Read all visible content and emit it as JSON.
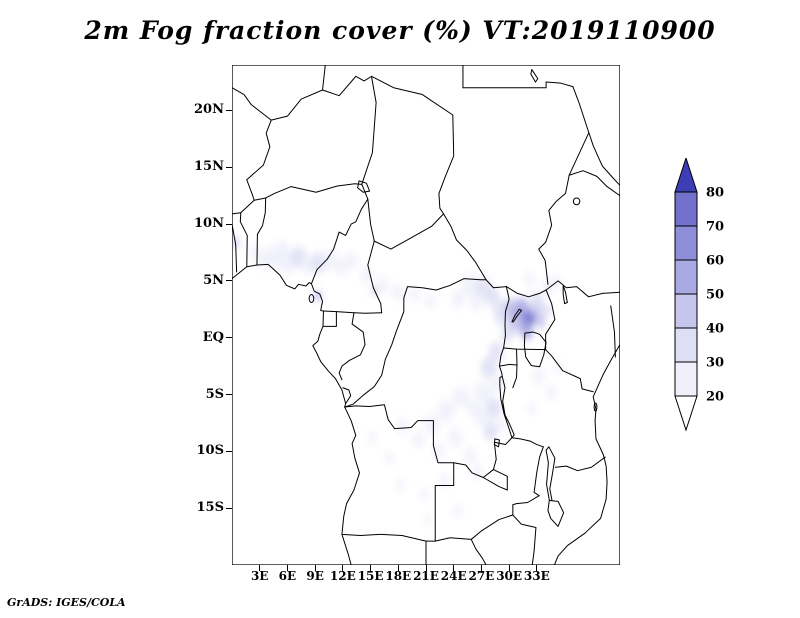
{
  "page": {
    "title": "2m Fog fraction cover (%) VT:2019110900",
    "footer": "GrADS: IGES/COLA"
  },
  "chart_data": {
    "type": "heatmap",
    "title": "2m Fog fraction cover (%) VT:2019110900",
    "variable": "2m Fog fraction cover",
    "units": "%",
    "valid_time": "2019110900",
    "region": "Central Africa",
    "grid": false,
    "legend_position": "right",
    "lon_range": [
      0,
      42
    ],
    "lat_range": [
      -20,
      24
    ],
    "lat_ticks": [
      {
        "value": 20,
        "label": "20N"
      },
      {
        "value": 15,
        "label": "15N"
      },
      {
        "value": 10,
        "label": "10N"
      },
      {
        "value": 5,
        "label": "5N"
      },
      {
        "value": 0,
        "label": "EQ"
      },
      {
        "value": -5,
        "label": "5S"
      },
      {
        "value": -10,
        "label": "10S"
      },
      {
        "value": -15,
        "label": "15S"
      }
    ],
    "lon_ticks": [
      {
        "value": 3,
        "label": "3E"
      },
      {
        "value": 6,
        "label": "6E"
      },
      {
        "value": 9,
        "label": "9E"
      },
      {
        "value": 12,
        "label": "12E"
      },
      {
        "value": 15,
        "label": "15E"
      },
      {
        "value": 18,
        "label": "18E"
      },
      {
        "value": 21,
        "label": "21E"
      },
      {
        "value": 24,
        "label": "24E"
      },
      {
        "value": 27,
        "label": "27E"
      },
      {
        "value": 30,
        "label": "30E"
      },
      {
        "value": 33,
        "label": "33E"
      }
    ],
    "colorbar": {
      "levels": [
        20,
        30,
        40,
        50,
        60,
        70,
        80
      ],
      "labels": [
        "20",
        "30",
        "40",
        "50",
        "60",
        "70",
        "80"
      ],
      "colors": [
        "#ffffff",
        "#f0f0fb",
        "#dedef5",
        "#c6c6ed",
        "#aaaae3",
        "#8f8fd9",
        "#7272cd",
        "#3d3db5"
      ]
    },
    "fog_patches": [
      [
        3.6,
        6.9,
        0.9,
        20
      ],
      [
        4.8,
        7.2,
        1.0,
        25
      ],
      [
        6.0,
        6.7,
        1.1,
        25
      ],
      [
        7.2,
        7.1,
        0.9,
        30
      ],
      [
        8.2,
        6.4,
        0.8,
        25
      ],
      [
        9.4,
        6.6,
        0.9,
        30
      ],
      [
        10.6,
        6.9,
        0.8,
        20
      ],
      [
        11.8,
        6.3,
        0.8,
        25
      ],
      [
        13.0,
        6.8,
        0.7,
        20
      ],
      [
        9.3,
        3.7,
        0.35,
        60
      ],
      [
        0.4,
        8.4,
        0.35,
        50
      ],
      [
        5.5,
        8.0,
        0.6,
        20
      ],
      [
        2.5,
        7.5,
        0.6,
        20
      ],
      [
        14.6,
        5.5,
        0.7,
        20
      ],
      [
        16.3,
        4.6,
        0.7,
        20
      ],
      [
        18.0,
        4.0,
        0.7,
        20
      ],
      [
        15.4,
        4.1,
        0.3,
        50
      ],
      [
        19.8,
        3.8,
        0.6,
        20
      ],
      [
        21.5,
        3.2,
        0.6,
        20
      ],
      [
        24.5,
        3.4,
        0.8,
        20
      ],
      [
        25.8,
        4.6,
        1.0,
        25
      ],
      [
        27.2,
        4.4,
        0.9,
        30
      ],
      [
        26.5,
        3.2,
        0.8,
        25
      ],
      [
        28.2,
        3.6,
        0.8,
        30
      ],
      [
        29.4,
        2.2,
        1.1,
        30
      ],
      [
        30.3,
        2.6,
        0.9,
        40
      ],
      [
        31.0,
        2.0,
        0.9,
        50
      ],
      [
        31.8,
        1.4,
        0.8,
        60
      ],
      [
        32.4,
        1.9,
        0.7,
        70
      ],
      [
        31.4,
        2.8,
        0.7,
        50
      ],
      [
        32.9,
        2.6,
        0.7,
        40
      ],
      [
        30.6,
        1.2,
        0.8,
        40
      ],
      [
        31.9,
        0.5,
        0.7,
        50
      ],
      [
        33.4,
        1.4,
        0.6,
        40
      ],
      [
        33.0,
        3.3,
        0.7,
        30
      ],
      [
        29.8,
        0.3,
        0.7,
        30
      ],
      [
        34.0,
        2.4,
        0.6,
        30
      ],
      [
        34.3,
        4.6,
        0.7,
        25
      ],
      [
        32.2,
        5.2,
        0.6,
        20
      ],
      [
        35.2,
        5.0,
        0.5,
        20
      ],
      [
        28.6,
        -1.2,
        0.8,
        30
      ],
      [
        27.8,
        -2.6,
        0.9,
        30
      ],
      [
        28.8,
        -4.0,
        0.8,
        25
      ],
      [
        27.2,
        -4.8,
        1.0,
        25
      ],
      [
        28.3,
        -6.2,
        0.9,
        30
      ],
      [
        27.0,
        -7.0,
        0.8,
        25
      ],
      [
        28.0,
        -8.2,
        0.8,
        30
      ],
      [
        26.2,
        -6.2,
        0.8,
        20
      ],
      [
        29.3,
        -7.6,
        0.6,
        25
      ],
      [
        24.8,
        -5.2,
        0.9,
        20
      ],
      [
        23.2,
        -6.4,
        1.0,
        20
      ],
      [
        21.6,
        -7.6,
        0.9,
        20
      ],
      [
        24.2,
        -8.8,
        0.8,
        20
      ],
      [
        22.4,
        -10.0,
        0.7,
        20
      ],
      [
        25.8,
        -10.4,
        0.7,
        20
      ],
      [
        20.2,
        -9.0,
        0.7,
        20
      ],
      [
        18.4,
        -7.8,
        0.7,
        20
      ],
      [
        26.6,
        -11.8,
        0.6,
        20
      ],
      [
        23.0,
        -12.6,
        0.6,
        20
      ],
      [
        20.8,
        -13.8,
        0.5,
        20
      ],
      [
        18.2,
        -13.0,
        0.5,
        20
      ],
      [
        24.4,
        -15.2,
        0.5,
        20
      ],
      [
        21.2,
        -16.0,
        0.4,
        20
      ],
      [
        17.0,
        -10.6,
        0.5,
        20
      ],
      [
        15.2,
        -8.8,
        0.5,
        20
      ],
      [
        33.2,
        -3.4,
        0.7,
        25
      ],
      [
        34.6,
        -4.8,
        0.6,
        20
      ],
      [
        32.4,
        -6.2,
        0.5,
        20
      ],
      [
        35.4,
        -2.6,
        0.5,
        20
      ]
    ]
  }
}
